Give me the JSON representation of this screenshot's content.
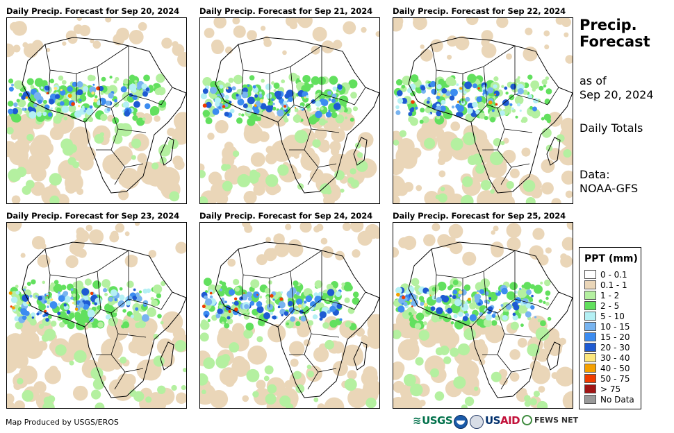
{
  "panels": [
    {
      "title": "Daily Precip. Forecast for Sep 20, 2024"
    },
    {
      "title": "Daily Precip. Forecast for Sep 21, 2024"
    },
    {
      "title": "Daily Precip. Forecast for Sep 22, 2024"
    },
    {
      "title": "Daily Precip. Forecast for Sep 23, 2024"
    },
    {
      "title": "Daily Precip. Forecast for Sep 24, 2024"
    },
    {
      "title": "Daily Precip. Forecast for Sep 25, 2024"
    }
  ],
  "side": {
    "title_line1": "Precip.",
    "title_line2": "Forecast",
    "asof_line1": "as of",
    "asof_line2": "Sep 20, 2024",
    "totals": "Daily Totals",
    "data_line1": "Data:",
    "data_line2": "NOAA-GFS"
  },
  "legend": {
    "title": "PPT (mm)",
    "items": [
      {
        "label": "0 - 0.1",
        "color": "#ffffff"
      },
      {
        "label": "0.1 - 1",
        "color": "#ead6b8"
      },
      {
        "label": "1 - 2",
        "color": "#b4f0a0"
      },
      {
        "label": "2 - 5",
        "color": "#62e05e"
      },
      {
        "label": "5 - 10",
        "color": "#b4f0f4"
      },
      {
        "label": "10 - 15",
        "color": "#78b4f0"
      },
      {
        "label": "15 - 20",
        "color": "#3c8cf0"
      },
      {
        "label": "20 - 30",
        "color": "#1e5ad2"
      },
      {
        "label": "30 - 40",
        "color": "#fce67c"
      },
      {
        "label": "40 - 50",
        "color": "#f5a000"
      },
      {
        "label": "50 - 75",
        "color": "#f03c00"
      },
      {
        "label": "> 75",
        "color": "#a01414"
      },
      {
        "label": "No Data",
        "color": "#999999"
      }
    ]
  },
  "credit": "Map Produced by USGS/EROS",
  "logos": {
    "usgs": "USGS",
    "usaid_a": "US",
    "usaid_b": "AID",
    "fews": "FEWS NET"
  }
}
